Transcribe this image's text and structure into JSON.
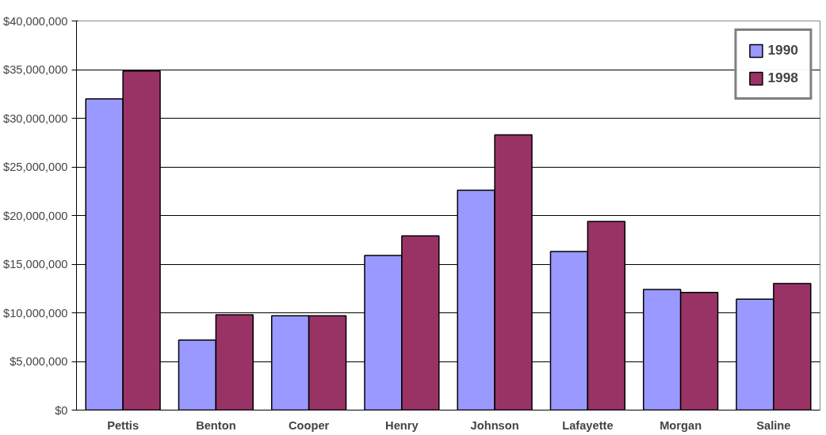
{
  "chart_data": {
    "type": "bar",
    "categories": [
      "Pettis",
      "Benton",
      "Cooper",
      "Henry",
      "Johnson",
      "Lafayette",
      "Morgan",
      "Saline"
    ],
    "series": [
      {
        "name": "1990",
        "color": "#9999ff",
        "values": [
          32000000,
          7200000,
          9700000,
          15900000,
          22600000,
          16300000,
          12400000,
          11400000
        ]
      },
      {
        "name": "1998",
        "color": "#993366",
        "values": [
          34850000,
          9800000,
          9700000,
          17900000,
          28300000,
          19400000,
          12100000,
          13000000
        ]
      }
    ],
    "ylim": [
      0,
      40000000
    ],
    "yticks": [
      {
        "value": 0,
        "label": "$0"
      },
      {
        "value": 5000000,
        "label": "$5,000,000"
      },
      {
        "value": 10000000,
        "label": "$10,000,000"
      },
      {
        "value": 15000000,
        "label": "$15,000,000"
      },
      {
        "value": 20000000,
        "label": "$20,000,000"
      },
      {
        "value": 25000000,
        "label": "$25,000,000"
      },
      {
        "value": 30000000,
        "label": "$30,000,000"
      },
      {
        "value": 35000000,
        "label": "$35,000,000"
      },
      {
        "value": 40000000,
        "label": "$40,000,000"
      }
    ],
    "grid": "y",
    "legend": "top right"
  }
}
